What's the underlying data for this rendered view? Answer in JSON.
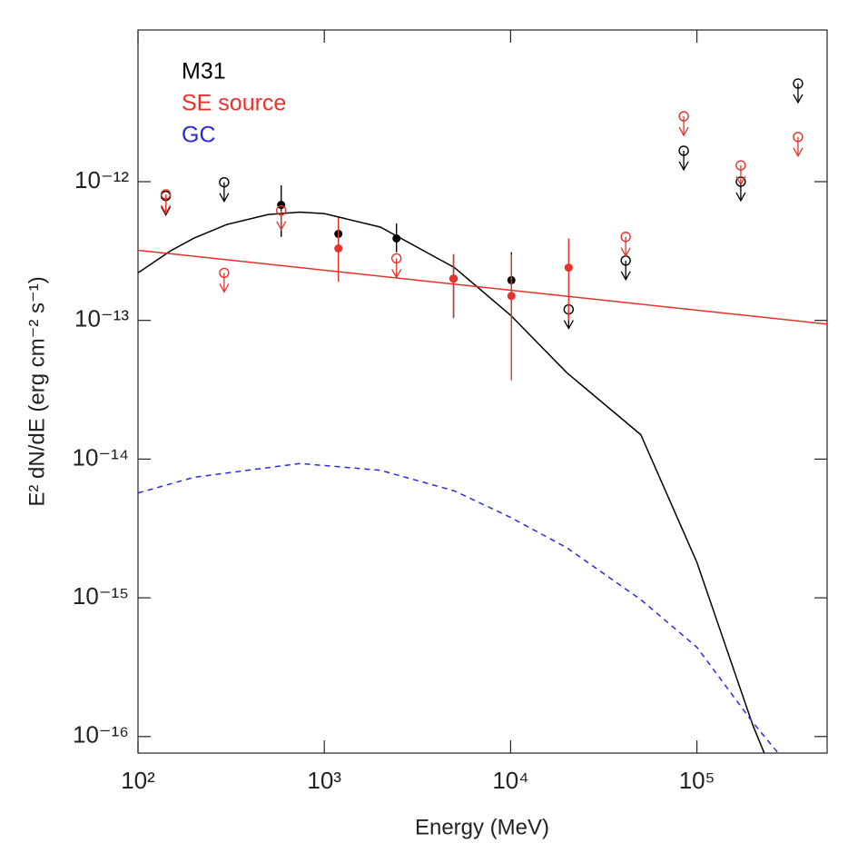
{
  "chart_data": {
    "type": "scatter",
    "x_label": "Energy (MeV)",
    "y_label": "E² dN/dE (erg cm⁻² s⁻¹)",
    "log_x": true,
    "log_y": true,
    "legend": "upper left",
    "xlim": [
      100,
      500000
    ],
    "ylim": [
      7.6e-17,
      1.24e-11
    ],
    "xticks": [
      {
        "value": 100,
        "label": "10²"
      },
      {
        "value": 1000,
        "label": "10³"
      },
      {
        "value": 10000,
        "label": "10⁴"
      },
      {
        "value": 100000,
        "label": "10⁵"
      }
    ],
    "yticks": [
      {
        "value": 1e-16,
        "label": "10⁻¹⁶"
      },
      {
        "value": 1e-15,
        "label": "10⁻¹⁵"
      },
      {
        "value": 1e-14,
        "label": "10⁻¹⁴"
      },
      {
        "value": 1e-13,
        "label": "10⁻¹³"
      },
      {
        "value": 1e-12,
        "label": "10⁻¹²"
      }
    ],
    "series": [
      {
        "name": "M31",
        "color": "#000000",
        "points": {
          "x": [
            587,
            1190,
            2440,
            4940,
            10100
          ],
          "values": [
            6.8e-13,
            4.2e-13,
            3.9e-13,
            2e-13,
            1.95e-13
          ],
          "lower": [
            4e-13,
            3.4e-13,
            3.1e-13,
            1.04e-13,
            1.2e-13
          ],
          "upper": [
            9.4e-13,
            5.6e-13,
            5e-13,
            3e-13,
            3.1e-13
          ]
        },
        "upper_limits": {
          "x": [
            141,
            290,
            20500,
            41500,
            85000,
            172000,
            349000
          ],
          "values": [
            7.9e-13,
            9.9e-13,
            1.2e-13,
            2.7e-13,
            1.67e-12,
            1e-12,
            5.1e-12
          ]
        },
        "model": {
          "dashed": false,
          "x": [
            100,
            150,
            200,
            300,
            500,
            740,
            1000,
            2000,
            5000,
            10000,
            20000,
            50000,
            100000,
            200000,
            230000
          ],
          "values": [
            2.2e-13,
            3.18e-13,
            3.92e-13,
            4.91e-13,
            5.8e-13,
            6.03e-13,
            5.89e-13,
            4.7e-13,
            2.4e-13,
            1.09e-13,
            4.2e-14,
            1.5e-14,
            1.8e-15,
            1.2e-16,
            7.6e-17
          ]
        }
      },
      {
        "name": "SE source",
        "color": "#e8312a",
        "points": {
          "x": [
            1190,
            4940,
            10100,
            20500
          ],
          "values": [
            3.3e-13,
            2e-13,
            1.5e-13,
            2.4e-13
          ],
          "lower": [
            1.9e-13,
            1.04e-13,
            3.7e-14,
            1e-13
          ],
          "upper": [
            5.5e-13,
            3e-13,
            3e-13,
            3.9e-13
          ]
        },
        "upper_limits": {
          "x": [
            141,
            290,
            587,
            2440,
            41500,
            85000,
            172000,
            349000
          ],
          "values": [
            8.1e-13,
            2.2e-13,
            6.2e-13,
            2.8e-13,
            4e-13,
            2.96e-12,
            1.31e-12,
            2.1e-12
          ]
        },
        "model": {
          "dashed": false,
          "x": [
            100,
            500000
          ],
          "values": [
            3.2e-13,
            9.4e-14
          ]
        }
      },
      {
        "name": "GC",
        "color": "#2a2ae0",
        "model": {
          "dashed": true,
          "x": [
            100,
            200,
            740,
            2000,
            5000,
            10000,
            20000,
            50000,
            100000,
            200000,
            273000
          ],
          "values": [
            5.7e-15,
            7.4e-15,
            9.3e-15,
            8.3e-15,
            5.9e-15,
            3.8e-15,
            2.3e-15,
            9.7e-16,
            4.4e-16,
            1.26e-16,
            7.6e-17
          ]
        }
      }
    ]
  }
}
